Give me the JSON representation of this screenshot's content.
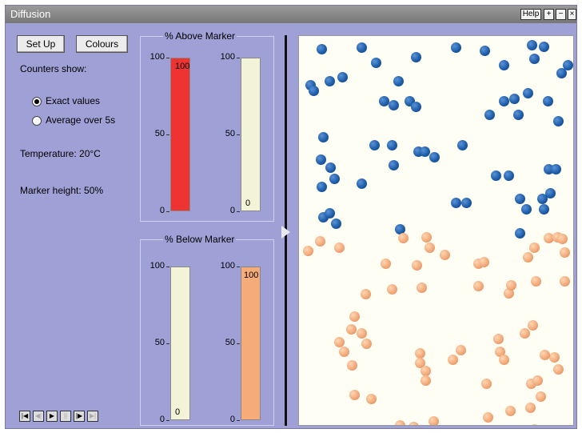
{
  "window": {
    "title": "Diffusion"
  },
  "titlebar_buttons": {
    "help": "Help",
    "plus": "+",
    "minus": "−",
    "close": "×"
  },
  "controls": {
    "setup_label": "Set Up",
    "colours_label": "Colours",
    "counters_heading": "Counters show:",
    "options": [
      {
        "label": "Exact values",
        "selected": true
      },
      {
        "label": "Average over 5s",
        "selected": false
      }
    ],
    "temperature": "Temperature: 20°C",
    "marker_height": "Marker height: 50%"
  },
  "above_marker": {
    "title": "% Above Marker",
    "ticks": [
      "100",
      "50",
      "0"
    ],
    "bars": [
      {
        "name": "blue",
        "value": 100,
        "label": "100",
        "color": "#ee3333"
      },
      {
        "name": "orange",
        "value": 0,
        "label": "0",
        "color": "#f5ac78"
      }
    ]
  },
  "below_marker": {
    "title": "% Below Marker",
    "ticks": [
      "100",
      "50",
      "0"
    ],
    "bars": [
      {
        "name": "blue",
        "value": 0,
        "label": "0",
        "color": "#ee3333"
      },
      {
        "name": "orange",
        "value": 100,
        "label": "100",
        "color": "#f5ac78"
      }
    ]
  },
  "playback": {
    "buttons": [
      {
        "name": "rewind",
        "glyph": "|◀"
      },
      {
        "name": "step-back",
        "glyph": "◀|"
      },
      {
        "name": "play",
        "glyph": "▶"
      },
      {
        "name": "pause",
        "glyph": "||"
      },
      {
        "name": "step-forward",
        "glyph": "|▶"
      },
      {
        "name": "fast-forward",
        "glyph": "▶|"
      }
    ]
  },
  "colors": {
    "blue_particle": "#1b59a6",
    "orange_particle": "#f0a676",
    "panel": "#9fa0d6"
  }
}
